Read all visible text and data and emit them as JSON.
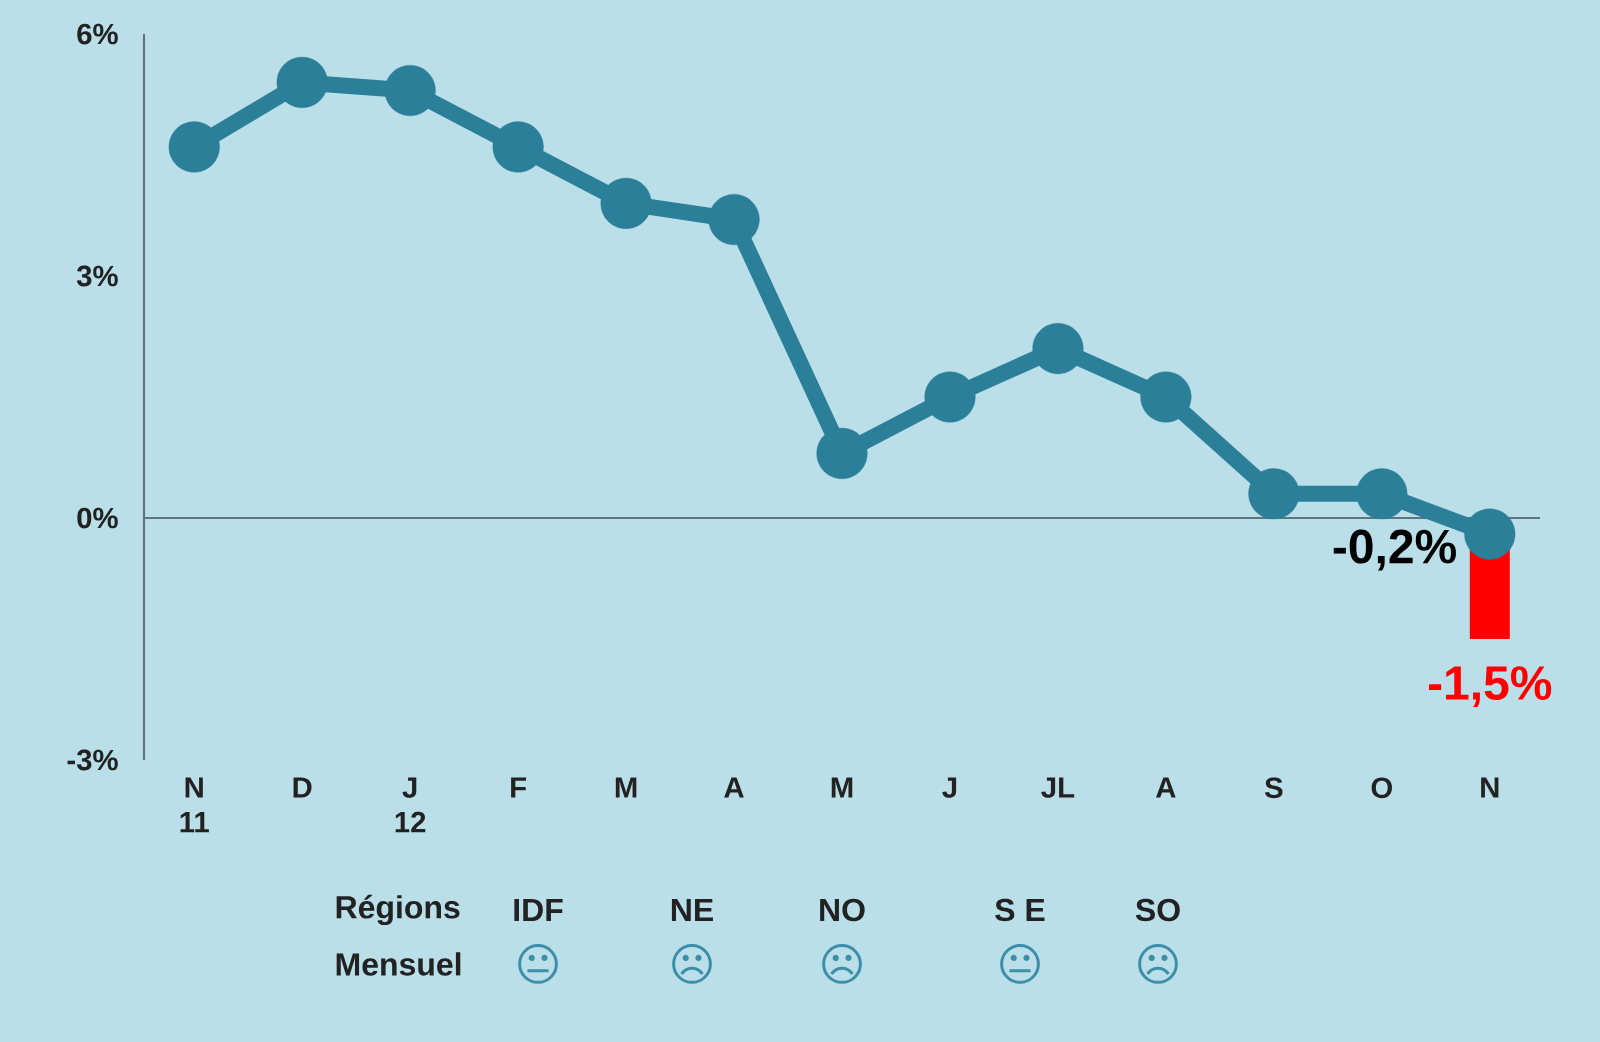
{
  "chart_data": {
    "type": "line",
    "categories": [
      "N\n11",
      "D",
      "J\n12",
      "F",
      "M",
      "A",
      "M",
      "J",
      "JL",
      "A",
      "S",
      "O",
      "N"
    ],
    "series": [
      {
        "type": "bar",
        "color": "#ff0000",
        "values": [
          null,
          null,
          null,
          null,
          null,
          null,
          null,
          null,
          null,
          null,
          null,
          null,
          -1.5
        ],
        "value_labels": [
          null,
          null,
          null,
          null,
          null,
          null,
          null,
          null,
          null,
          null,
          null,
          null,
          "-1,5%"
        ]
      },
      {
        "color": "#2b7f99",
        "values": [
          4.6,
          5.4,
          5.3,
          4.6,
          3.9,
          3.7,
          0.8,
          1.5,
          2.1,
          1.5,
          0.3,
          0.3,
          -0.2
        ],
        "value_labels": [
          null,
          null,
          null,
          null,
          null,
          null,
          null,
          null,
          null,
          null,
          null,
          null,
          "-0,2%"
        ]
      }
    ],
    "ylim": [
      -3,
      6
    ],
    "yticks": [
      {
        "value": -3,
        "label": "-3%"
      },
      {
        "value": 0,
        "label": "0%"
      },
      {
        "value": 3,
        "label": "3%"
      },
      {
        "value": 6,
        "label": "6%"
      }
    ],
    "ref_lines": [
      {
        "axis": "y",
        "value": 0,
        "color": "#5e7480"
      }
    ],
    "marker": "circle",
    "line_style": "solid",
    "annotations": [
      "Régions",
      "IDF",
      "NE",
      "NO",
      "S E",
      "SO",
      "Mensuel",
      "😐",
      "☹",
      "☹",
      "😐",
      "☹"
    ]
  }
}
